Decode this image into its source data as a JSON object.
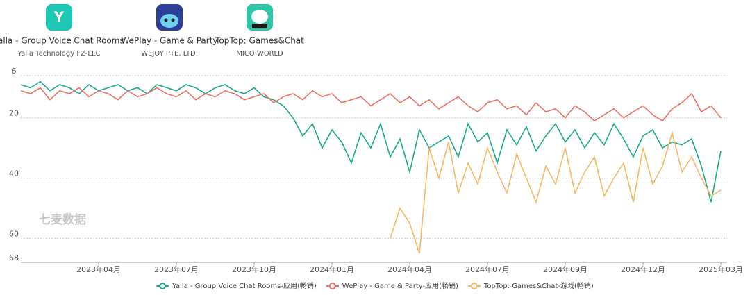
{
  "apps": [
    {
      "name": "Yalla - Group Voice Chat Rooms",
      "publisher": "Yalla Technology FZ-LLC"
    },
    {
      "name": "WePlay - Game & Party",
      "publisher": "WEJOY PTE. LTD."
    },
    {
      "name": "TopTop: Games&Chat",
      "publisher": "MICO WORLD"
    }
  ],
  "watermark": "七麦数据",
  "chart_data": {
    "type": "line",
    "x": [
      null,
      null,
      null,
      null,
      null,
      null,
      null,
      null,
      "2023年04月",
      null,
      null,
      null,
      null,
      null,
      null,
      null,
      "2023年07月",
      null,
      null,
      null,
      null,
      null,
      null,
      null,
      "2023年10月",
      null,
      null,
      null,
      null,
      null,
      null,
      null,
      "2024年01月",
      null,
      null,
      null,
      null,
      null,
      null,
      null,
      "2024年04月",
      null,
      null,
      null,
      null,
      null,
      null,
      null,
      "2024年07月",
      null,
      null,
      null,
      null,
      null,
      null,
      null,
      "2024年09月",
      null,
      null,
      null,
      null,
      null,
      null,
      null,
      "2024年12月",
      null,
      null,
      null,
      null,
      null,
      null,
      null,
      "2025年03月"
    ],
    "ylim": [
      6,
      68
    ],
    "y_reversed": true,
    "yticks": [
      6,
      20,
      40,
      60,
      68
    ],
    "grid": true,
    "series": [
      {
        "name": "Yalla - Group Voice Chat Rooms-应用(畅销)",
        "color": "#1aaa8a",
        "values": [
          9,
          10,
          8,
          11,
          9,
          10,
          12,
          9,
          11,
          10,
          9,
          11,
          10,
          12,
          9,
          10,
          11,
          9,
          10,
          12,
          10,
          9,
          11,
          12,
          10,
          13,
          14,
          16,
          20,
          26,
          22,
          30,
          24,
          28,
          35,
          25,
          30,
          22,
          33,
          27,
          38,
          24,
          30,
          28,
          26,
          33,
          22,
          28,
          25,
          35,
          24,
          29,
          23,
          31,
          26,
          22,
          28,
          24,
          30,
          25,
          29,
          22,
          27,
          33,
          26,
          24,
          30,
          28,
          29,
          27,
          36,
          48,
          31
        ]
      },
      {
        "name": "WePlay - Game & Party-应用(畅销)",
        "color": "#eb7162",
        "values": [
          11,
          12,
          10,
          14,
          11,
          12,
          10,
          13,
          11,
          12,
          14,
          11,
          13,
          12,
          10,
          12,
          13,
          11,
          14,
          12,
          13,
          11,
          12,
          14,
          13,
          12,
          15,
          13,
          12,
          14,
          11,
          13,
          12,
          15,
          14,
          13,
          16,
          14,
          12,
          15,
          13,
          16,
          14,
          17,
          15,
          13,
          16,
          18,
          15,
          14,
          17,
          16,
          19,
          15,
          18,
          17,
          20,
          16,
          18,
          21,
          19,
          17,
          20,
          18,
          16,
          19,
          21,
          17,
          15,
          12,
          18,
          16,
          20
        ]
      },
      {
        "name": "TopTop: Games&Chat-游戏(畅销)",
        "color": "#f5b965",
        "values": [
          null,
          null,
          null,
          null,
          null,
          null,
          null,
          null,
          null,
          null,
          null,
          null,
          null,
          null,
          null,
          null,
          null,
          null,
          null,
          null,
          null,
          null,
          null,
          null,
          null,
          null,
          null,
          null,
          null,
          null,
          null,
          null,
          null,
          null,
          null,
          null,
          null,
          null,
          60,
          50,
          55,
          65,
          30,
          40,
          28,
          45,
          35,
          42,
          30,
          38,
          45,
          32,
          40,
          48,
          36,
          42,
          30,
          45,
          38,
          33,
          46,
          40,
          35,
          48,
          30,
          42,
          36,
          25,
          38,
          33,
          40,
          46,
          44
        ]
      }
    ]
  }
}
